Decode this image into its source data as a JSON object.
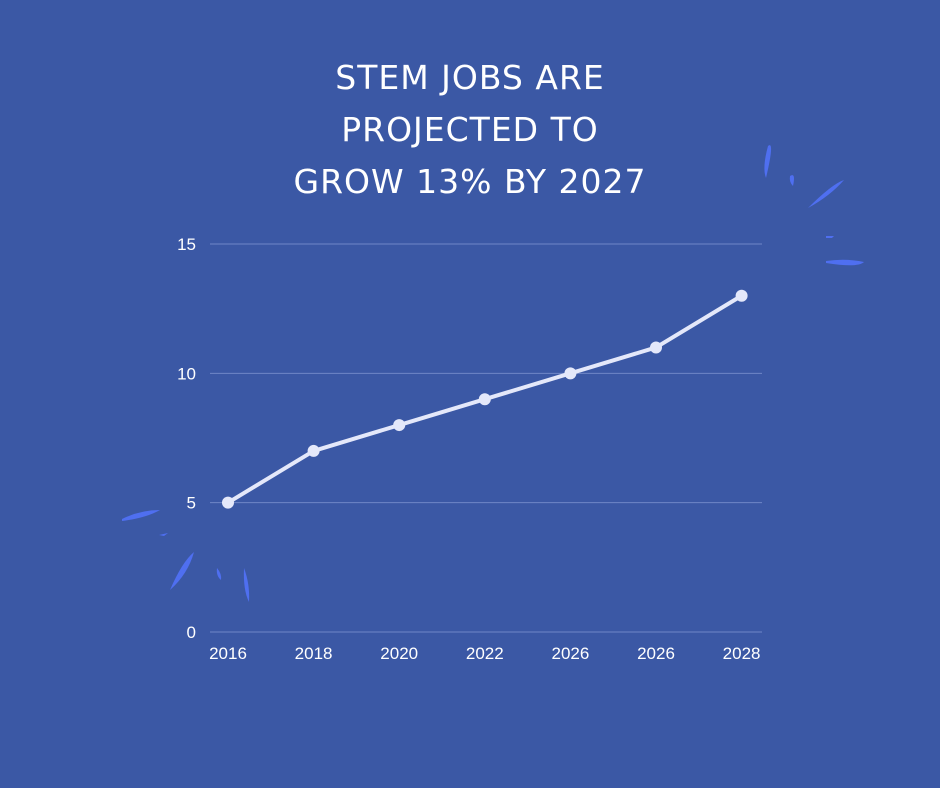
{
  "title_lines": [
    "STEM JOBS ARE",
    "PROJECTED TO",
    "GROW 13% BY 2027"
  ],
  "colors": {
    "background": "#3b58a5",
    "line": "#e4e8fa",
    "grid": "#6f86c6",
    "decor": "#4f6ff0",
    "text": "#ffffff"
  },
  "chart_data": {
    "type": "line",
    "title": "STEM JOBS ARE PROJECTED TO GROW 13% BY 2027",
    "categories": [
      "2016",
      "2018",
      "2020",
      "2022",
      "2026",
      "2026",
      "2028"
    ],
    "series": [
      {
        "values": [
          5,
          7,
          8,
          9,
          10,
          11,
          13
        ]
      }
    ],
    "yticks": [
      0,
      5,
      10,
      15
    ],
    "ylim": [
      0,
      15
    ],
    "grid": true,
    "legend": "none",
    "xlabel": "",
    "ylabel": ""
  }
}
